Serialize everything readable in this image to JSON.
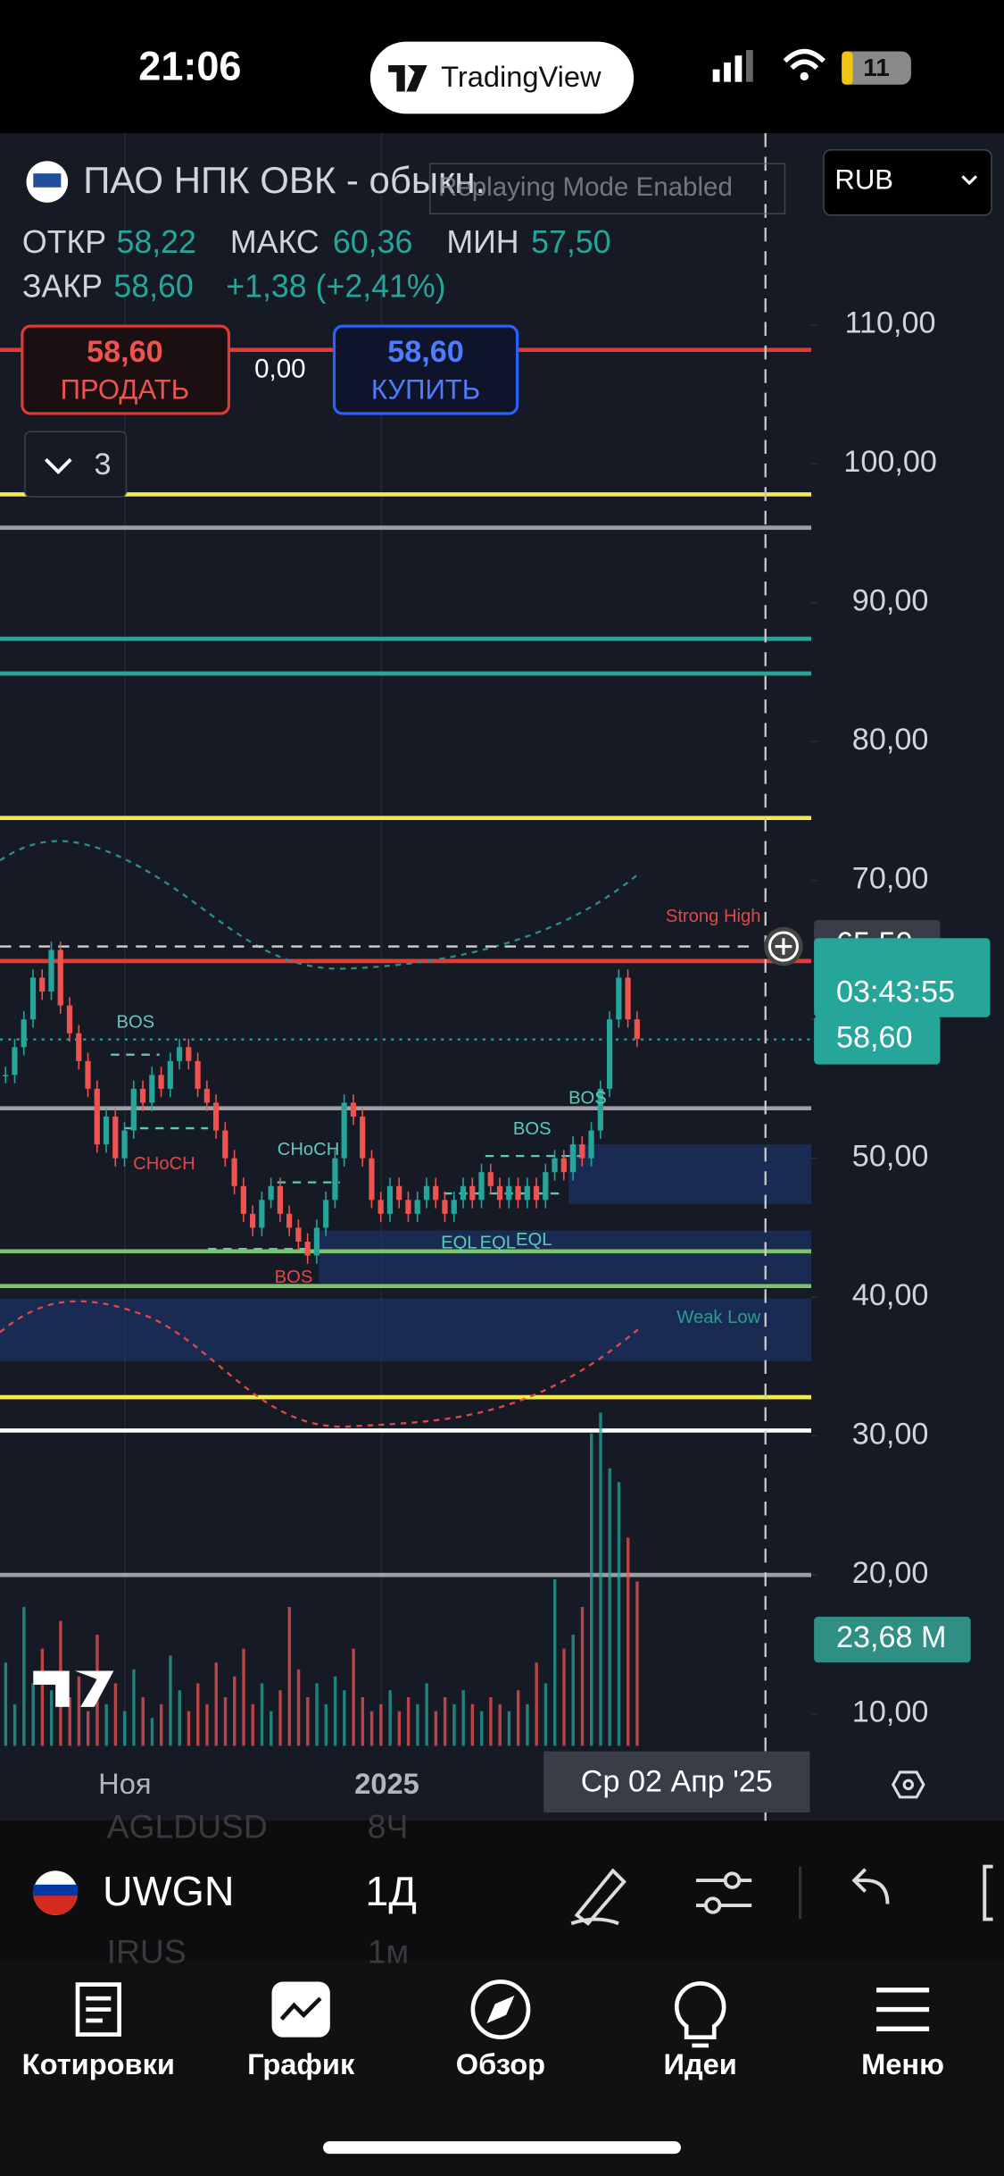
{
  "status_bar": {
    "time": "21:06",
    "app": "TradingView",
    "battery": "11"
  },
  "header": {
    "symbol_name": "ПАО НПК ОВК - обыкн.",
    "replay_notice": "Replaying Mode Enabled",
    "currency": "RUB",
    "ohlc": {
      "open_label": "ОТКР",
      "open": "58,22",
      "high_label": "МАКС",
      "high": "60,36",
      "low_label": "МИН",
      "low": "57,50",
      "close_label": "ЗАКР",
      "close": "58,60",
      "change": "+1,38 (+2,41%)"
    },
    "sell": {
      "price": "58,60",
      "label": "ПРОДАТЬ"
    },
    "spread": "0,00",
    "buy": {
      "price": "58,60",
      "label": "КУПИТЬ"
    },
    "indicators_count": "3"
  },
  "chart_data": {
    "type": "candlestick",
    "ylim": [
      7.7,
      123.4
    ],
    "yticks": [
      {
        "value": 110,
        "label": "110,00"
      },
      {
        "value": 100,
        "label": "100,00"
      },
      {
        "value": 90,
        "label": "90,00"
      },
      {
        "value": 80,
        "label": "80,00"
      },
      {
        "value": 70,
        "label": "70,00"
      },
      {
        "value": 60,
        "label": "60,00"
      },
      {
        "value": 50,
        "label": "50,00"
      },
      {
        "value": 40,
        "label": "40,00"
      },
      {
        "value": 30,
        "label": "30,00"
      },
      {
        "value": 20,
        "label": "20,00"
      },
      {
        "value": 10,
        "label": "10,00"
      }
    ],
    "closes": [
      56,
      58,
      60,
      63,
      62,
      65,
      61,
      59,
      57,
      55,
      51,
      53,
      50,
      52,
      55,
      54,
      56,
      55,
      57,
      58,
      57,
      55,
      54,
      52,
      50,
      48,
      46,
      45,
      47,
      48,
      46,
      45,
      44,
      43,
      45,
      47,
      50,
      54,
      53,
      50,
      47,
      46,
      48,
      47,
      46,
      47,
      48,
      47,
      46,
      47,
      48,
      47,
      49,
      48,
      47,
      48,
      47,
      48,
      47,
      49,
      50,
      49,
      51,
      50,
      52,
      55,
      60,
      63,
      60,
      58.6
    ],
    "volumes": [
      12,
      6,
      20,
      9,
      14,
      8,
      18,
      7,
      10,
      5,
      16,
      6,
      9,
      5,
      11,
      7,
      4,
      6,
      13,
      8,
      5,
      9,
      6,
      12,
      7,
      10,
      14,
      6,
      9,
      5,
      8,
      20,
      11,
      7,
      9,
      6,
      10,
      8,
      14,
      7,
      5,
      6,
      8,
      5,
      7,
      6,
      9,
      5,
      7,
      6,
      8,
      6,
      5,
      7,
      6,
      5,
      8,
      6,
      12,
      9,
      24,
      14,
      16,
      20,
      45,
      48,
      40,
      38,
      30,
      23.68
    ],
    "volume_ylim": [
      0,
      60
    ],
    "levels": [
      {
        "value": 108.2,
        "color": "#e53935"
      },
      {
        "value": 97.8,
        "color": "#f5e94e"
      },
      {
        "value": 95.4,
        "color": "#9e9ea4"
      },
      {
        "value": 87.4,
        "color": "#26a69a"
      },
      {
        "value": 84.9,
        "color": "#26a69a"
      },
      {
        "value": 74.5,
        "color": "#f5e94e"
      },
      {
        "value": 64.2,
        "color": "#e53935"
      },
      {
        "value": 53.6,
        "color": "#9e9ea4"
      },
      {
        "value": 43.3,
        "color": "#7cc36b"
      },
      {
        "value": 40.8,
        "color": "#7cc36b"
      },
      {
        "value": 32.8,
        "color": "#f5e94e"
      },
      {
        "value": 30.4,
        "color": "#ffffff"
      },
      {
        "value": 20.0,
        "color": "#9e9ea4"
      }
    ],
    "zones": [
      [
        51.0,
        46.7
      ],
      [
        44.8,
        41.0
      ],
      [
        39.9,
        35.4
      ]
    ],
    "price_labels": {
      "replay_price": "65,50",
      "countdown": "03:43:55",
      "last_price": "58,60",
      "volume": "23,68 M"
    },
    "xticks": [
      "Ноя",
      "2025"
    ],
    "cursor_date": "Ср 02 Апр '25",
    "annotations": [
      "Strong High",
      "Weak Low",
      "BOS",
      "CHoCH",
      "CHoCH",
      "BOS",
      "BOS",
      "BOS",
      "EQL",
      "EQL",
      "EQL"
    ]
  },
  "toolbar": {
    "symbol": "UWGN",
    "interval": "1Д",
    "ghost_rows": [
      [
        "AGLDUSD",
        "8Ч"
      ],
      [
        "IRUS",
        "1м"
      ]
    ]
  },
  "tabs": [
    "Котировки",
    "График",
    "Обзор",
    "Идеи",
    "Меню"
  ]
}
